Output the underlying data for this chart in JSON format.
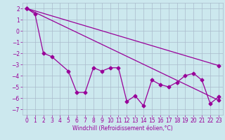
{
  "xlabel": "Windchill (Refroidissement éolien,°C)",
  "background_color": "#cce8ee",
  "grid_color": "#aabbcc",
  "line_color": "#990099",
  "xlim": [
    -0.5,
    23.5
  ],
  "ylim": [
    -7.5,
    2.5
  ],
  "xticks": [
    0,
    1,
    2,
    3,
    4,
    5,
    6,
    7,
    8,
    9,
    10,
    11,
    12,
    13,
    14,
    15,
    16,
    17,
    18,
    19,
    20,
    21,
    22,
    23
  ],
  "yticks": [
    -7,
    -6,
    -5,
    -4,
    -3,
    -2,
    -1,
    0,
    1,
    2
  ],
  "line1_x": [
    0,
    23
  ],
  "line1_y": [
    2.0,
    -6.2
  ],
  "line2_x": [
    0,
    23
  ],
  "line2_y": [
    2.0,
    -3.1
  ],
  "line3_x": [
    0,
    1,
    2,
    3,
    5,
    6,
    7,
    8,
    9,
    10,
    11,
    12,
    13,
    14,
    15,
    16,
    17,
    18,
    19,
    20,
    21,
    22,
    23
  ],
  "line3_y": [
    2.0,
    1.5,
    -2.0,
    -2.3,
    -3.6,
    -5.5,
    -5.5,
    -3.3,
    -3.6,
    -3.3,
    -3.3,
    -6.3,
    -5.8,
    -6.7,
    -4.4,
    -4.8,
    -5.0,
    -4.6,
    -4.0,
    -3.8,
    -4.4,
    -6.5,
    -5.9
  ]
}
